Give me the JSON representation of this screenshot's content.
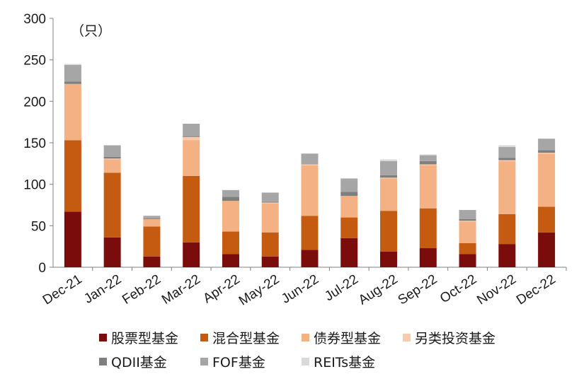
{
  "chart_data": {
    "type": "bar",
    "stacked": true,
    "unit_label": "（只）",
    "ylim": [
      0,
      300
    ],
    "yticks": [
      "0",
      "50",
      "100",
      "150",
      "200",
      "250",
      "300"
    ],
    "categories": [
      "Dec-21",
      "Jan-22",
      "Feb-22",
      "Mar-22",
      "Apr-22",
      "May-22",
      "Jun-22",
      "Jul-22",
      "Aug-22",
      "Sep-22",
      "Oct-22",
      "Nov-22",
      "Dec-22"
    ],
    "series": [
      {
        "name": "股票型基金",
        "color": "#7b0c0c",
        "values": [
          67,
          36,
          13,
          30,
          16,
          13,
          21,
          35,
          19,
          23,
          16,
          28,
          42
        ]
      },
      {
        "name": "混合型基金",
        "color": "#c55a11",
        "values": [
          86,
          78,
          36,
          80,
          27,
          29,
          41,
          25,
          49,
          48,
          13,
          36,
          31
        ]
      },
      {
        "name": "债券型基金",
        "color": "#f4b183",
        "values": [
          68,
          16,
          9,
          43,
          37,
          35,
          61,
          26,
          39,
          52,
          26,
          64,
          64
        ]
      },
      {
        "name": "另类投资基金",
        "color": "#f8cbad",
        "values": [
          0,
          1,
          0,
          4,
          0,
          1,
          1,
          0,
          1,
          1,
          1,
          1,
          1
        ]
      },
      {
        "name": "QDII基金",
        "color": "#7f7f7f",
        "values": [
          3,
          2,
          1,
          1,
          5,
          1,
          0,
          5,
          3,
          4,
          2,
          3,
          3
        ]
      },
      {
        "name": "FOF基金",
        "color": "#a6a6a6",
        "values": [
          20,
          14,
          3,
          15,
          8,
          11,
          13,
          16,
          17,
          7,
          11,
          13,
          14
        ]
      },
      {
        "name": "REITs基金",
        "color": "#d9d9d9",
        "values": [
          1,
          0,
          0,
          0,
          0,
          0,
          0,
          0,
          2,
          1,
          0,
          2,
          0
        ]
      }
    ]
  }
}
